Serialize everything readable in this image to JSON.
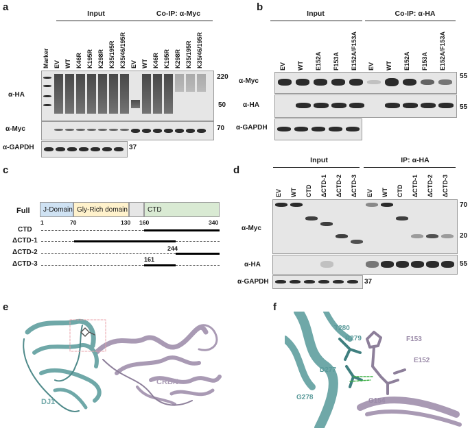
{
  "panels": {
    "a": {
      "letter": "a",
      "group_input": "Input",
      "group_coip": "Co-IP: α-Myc",
      "lanes": [
        "Marker",
        "EV",
        "WT",
        "K46R",
        "K195R",
        "K298R",
        "K35/195R",
        "K35/46/195R",
        "EV",
        "WT",
        "K46R",
        "K195R",
        "K298R",
        "K35/195R",
        "K35/46/195R"
      ],
      "antibodies": [
        "α-HA",
        "α-Myc",
        "α-GAPDH"
      ],
      "mw_220": "220",
      "mw_50": "50",
      "mw_70": "70",
      "mw_37": "37"
    },
    "b": {
      "letter": "b",
      "group_input": "Input",
      "group_coip": "Co-IP: α-HA",
      "lanes": [
        "EV",
        "WT",
        "E152A",
        "F153A",
        "E152A/F153A",
        "EV",
        "WT",
        "E152A",
        "F153A",
        "E152A/F153A"
      ],
      "antibodies": [
        "α-Myc",
        "α-HA",
        "α-GAPDH"
      ],
      "mw_55a": "55",
      "mw_55b": "55"
    },
    "c": {
      "letter": "c",
      "full_label": "Full",
      "domains": [
        "J-Domain",
        "Gly-Rich domain",
        "",
        "CTD"
      ],
      "ticks": [
        "1",
        "70",
        "130",
        "160",
        "340"
      ],
      "constructs": [
        "CTD",
        "ΔCTD-1",
        "ΔCTD-2",
        "ΔCTD-3"
      ],
      "pos_244": "244",
      "pos_161": "161"
    },
    "d": {
      "letter": "d",
      "group_input": "Input",
      "group_ip": "IP: α-HA",
      "lanes": [
        "EV",
        "WT",
        "CTD",
        "ΔCTD-1",
        "ΔCTD-2",
        "ΔCTD-3",
        "EV",
        "WT",
        "CTD",
        "ΔCTD-1",
        "ΔCTD-2",
        "ΔCTD-3"
      ],
      "antibodies": [
        "α-Myc",
        "α-HA",
        "α-GAPDH"
      ],
      "mw_70": "70",
      "mw_20": "20",
      "mw_55": "55",
      "mw_37": "37"
    },
    "e": {
      "letter": "e",
      "label_dj1": "DJ1",
      "label_crbn": "CRBN"
    },
    "f": {
      "letter": "f",
      "residues": [
        "T280",
        "R279",
        "F153",
        "E152",
        "D277",
        "G278",
        "G154"
      ]
    }
  },
  "colors": {
    "dj1": "#6fa8a8",
    "crbn": "#a99ab4",
    "jdomain": "#cfe2f3",
    "glyrich": "#fff2cc",
    "linker": "#e6e6e6",
    "ctd": "#d9ead3"
  }
}
